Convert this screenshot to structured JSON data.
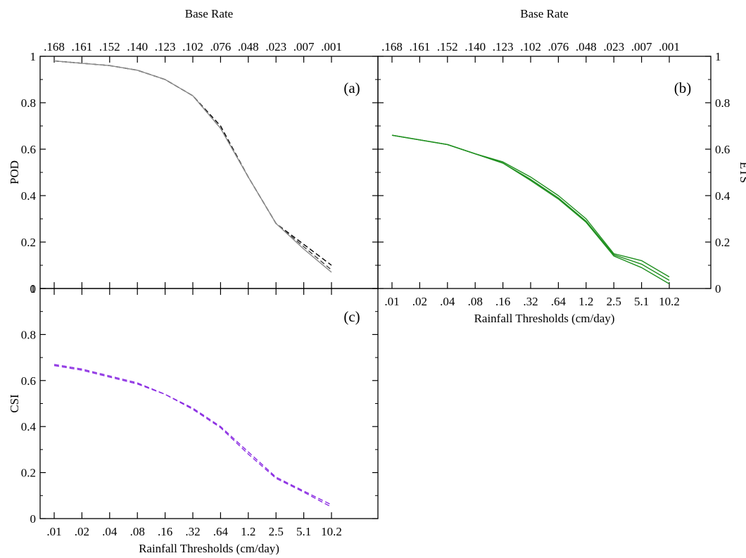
{
  "chart_data": [
    {
      "type": "line",
      "panel_label": "(a)",
      "top_axis_title": "Base Rate",
      "top_tick_labels": [
        ".168",
        ".161",
        ".152",
        ".140",
        ".123",
        ".102",
        ".076",
        ".048",
        ".023",
        ".007",
        ".001"
      ],
      "ylabel": "POD",
      "ylim": [
        0,
        1
      ],
      "y_ticks": [
        "0",
        "0.2",
        "0.4",
        "0.6",
        "0.8",
        "1"
      ],
      "y_axis_side": "left",
      "x_categories": [
        ".01",
        ".02",
        ".04",
        ".08",
        ".16",
        ".32",
        ".64",
        "1.2",
        "2.5",
        "5.1",
        "10.2"
      ],
      "series": [
        {
          "color": "#000000",
          "dash": true,
          "values": [
            0.98,
            0.97,
            0.96,
            0.94,
            0.9,
            0.83,
            0.7,
            0.48,
            0.28,
            0.19,
            0.1
          ]
        },
        {
          "color": "#444444",
          "dash": true,
          "values": [
            0.98,
            0.97,
            0.96,
            0.94,
            0.9,
            0.83,
            0.69,
            0.48,
            0.28,
            0.18,
            0.08
          ]
        },
        {
          "color": "#888888",
          "dash": false,
          "values": [
            0.98,
            0.97,
            0.96,
            0.94,
            0.9,
            0.83,
            0.69,
            0.48,
            0.28,
            0.17,
            0.07
          ]
        }
      ]
    },
    {
      "type": "line",
      "panel_label": "(b)",
      "top_axis_title": "Base Rate",
      "top_tick_labels": [
        ".168",
        ".161",
        ".152",
        ".140",
        ".123",
        ".102",
        ".076",
        ".048",
        ".023",
        ".007",
        ".001"
      ],
      "ylabel": "ETS",
      "ylim": [
        0,
        1
      ],
      "y_ticks": [
        "0",
        "0.2",
        "0.4",
        "0.6",
        "0.8",
        "1"
      ],
      "y_axis_side": "right",
      "xlabel": "Rainfall Thresholds (cm/day)",
      "x_categories": [
        ".01",
        ".02",
        ".04",
        ".08",
        ".16",
        ".32",
        ".64",
        "1.2",
        "2.5",
        "5.1",
        "10.2"
      ],
      "series": [
        {
          "color": "#1f8f1f",
          "dash": false,
          "values": [
            0.66,
            0.64,
            0.62,
            0.58,
            0.545,
            0.48,
            0.4,
            0.3,
            0.15,
            0.12,
            0.05
          ]
        },
        {
          "color": "#1f8f1f",
          "dash": false,
          "values": [
            0.66,
            0.64,
            0.62,
            0.58,
            0.54,
            0.47,
            0.39,
            0.29,
            0.145,
            0.105,
            0.035
          ]
        },
        {
          "color": "#1f8f1f",
          "dash": false,
          "values": [
            0.66,
            0.64,
            0.62,
            0.58,
            0.54,
            0.465,
            0.385,
            0.285,
            0.14,
            0.09,
            0.02
          ]
        }
      ]
    },
    {
      "type": "line",
      "panel_label": "(c)",
      "ylabel": "CSI",
      "ylim": [
        0,
        1
      ],
      "y_ticks": [
        "0",
        "0.2",
        "0.4",
        "0.6",
        "0.8",
        "1"
      ],
      "y_axis_side": "left",
      "xlabel": "Rainfall Thresholds (cm/day)",
      "x_categories": [
        ".01",
        ".02",
        ".04",
        ".08",
        ".16",
        ".32",
        ".64",
        "1.2",
        "2.5",
        "5.1",
        "10.2"
      ],
      "series": [
        {
          "color": "#8a2be2",
          "dash": true,
          "values": [
            0.67,
            0.65,
            0.62,
            0.59,
            0.54,
            0.48,
            0.4,
            0.29,
            0.18,
            0.12,
            0.06
          ]
        },
        {
          "color": "#8a2be2",
          "dash": true,
          "values": [
            0.665,
            0.645,
            0.615,
            0.585,
            0.54,
            0.475,
            0.395,
            0.28,
            0.175,
            0.115,
            0.05
          ]
        }
      ]
    }
  ]
}
